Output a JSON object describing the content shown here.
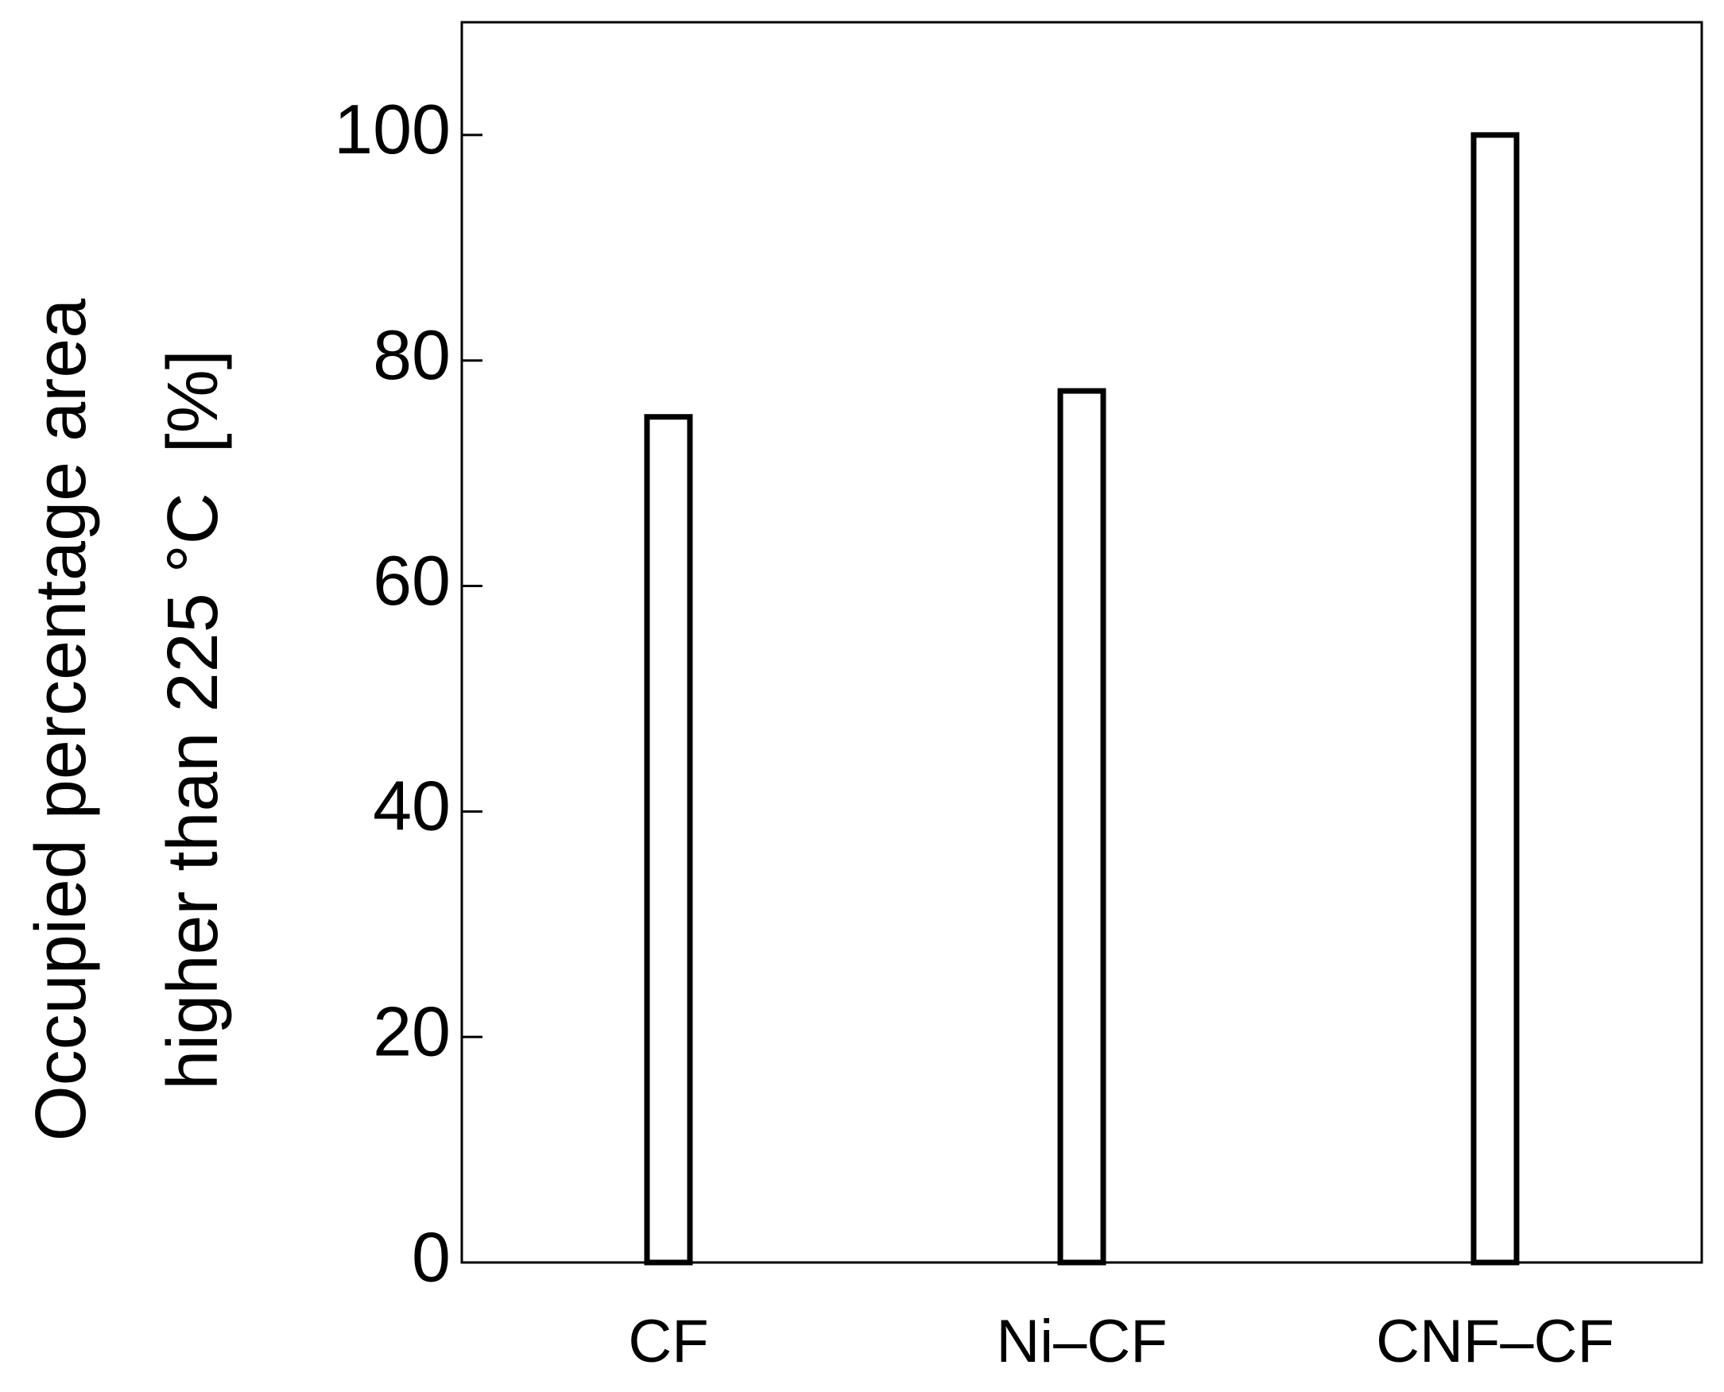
{
  "chart_data": {
    "type": "bar",
    "ylabel": [
      "Occupied percentage area",
      "higher than 225 °C  [%]"
    ],
    "categories": [
      "CF",
      "Ni–CF",
      "CNF–CF"
    ],
    "values": [
      75,
      77.3,
      100
    ],
    "color": "#ffffff",
    "ylim": [
      0,
      110
    ],
    "yticks": [
      0,
      20,
      40,
      60,
      80,
      100
    ],
    "grid": false
  }
}
